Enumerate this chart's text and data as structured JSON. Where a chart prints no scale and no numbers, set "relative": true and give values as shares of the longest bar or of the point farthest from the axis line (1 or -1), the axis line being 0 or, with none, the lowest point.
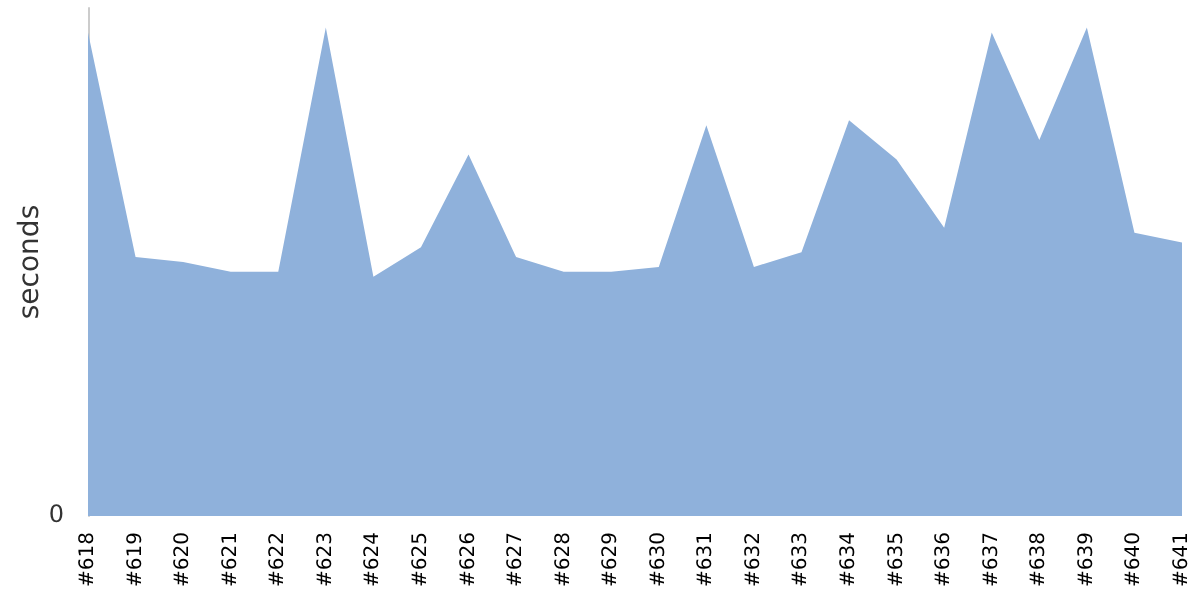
{
  "chart_data": {
    "type": "area",
    "ylabel": "seconds",
    "relative": true,
    "categories": [
      "#618",
      "#619",
      "#620",
      "#621",
      "#622",
      "#623",
      "#624",
      "#625",
      "#626",
      "#627",
      "#628",
      "#629",
      "#630",
      "#631",
      "#632",
      "#633",
      "#634",
      "#635",
      "#636",
      "#637",
      "#638",
      "#639",
      "#640",
      "#641"
    ],
    "series": [
      {
        "color": "#8fb1db",
        "values": [
          0.99,
          0.53,
          0.52,
          0.5,
          0.5,
          1,
          0.49,
          0.55,
          0.74,
          0.53,
          0.5,
          0.5,
          0.51,
          0.8,
          0.51,
          0.54,
          0.81,
          0.73,
          0.59,
          0.99,
          0.77,
          1,
          0.58,
          0.56
        ]
      }
    ],
    "annotations": [
      "0"
    ]
  }
}
